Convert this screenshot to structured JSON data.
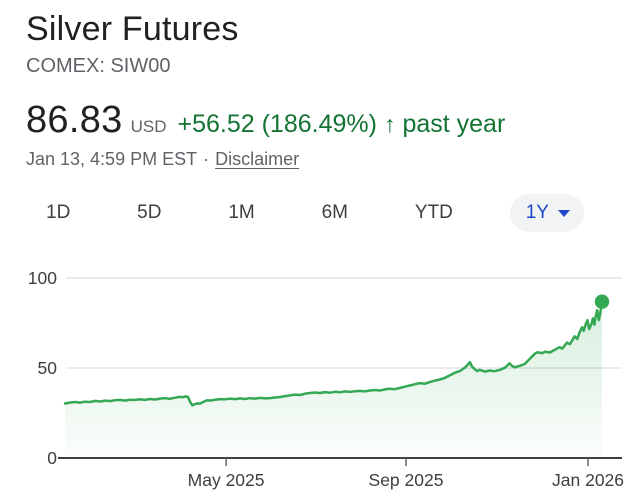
{
  "header": {
    "title": "Silver Futures",
    "exchange": "COMEX: SIW00"
  },
  "quote": {
    "price": "86.83",
    "currency": "USD",
    "change": "+56.52 (186.49%)",
    "arrow": "↑",
    "period_label": "past year",
    "timestamp": "Jan 13, 4:59 PM EST",
    "separator": "·",
    "disclaimer_label": "Disclaimer"
  },
  "range_tabs": {
    "selected": "1Y",
    "items": [
      {
        "label": "1D"
      },
      {
        "label": "5D"
      },
      {
        "label": "1M"
      },
      {
        "label": "6M"
      },
      {
        "label": "YTD"
      },
      {
        "label": "1Y"
      }
    ]
  },
  "colors": {
    "text_primary": "#202124",
    "text_secondary": "#5f6368",
    "tab_text": "#3c4043",
    "accent_blue": "#1f46c8",
    "change_green": "#137333",
    "line_green": "#34a853",
    "chip_bg": "#f1f3f4",
    "gridline": "#e9ebec",
    "baseline": "#3c4043",
    "axis_text": "#3c4043"
  },
  "chart_data": {
    "type": "area",
    "title": "Silver Futures, past year",
    "x_range": [
      "Jan 13, 2025",
      "Jan 13, 2026"
    ],
    "ylim": [
      0,
      100
    ],
    "y_ticks": [
      0,
      50,
      100
    ],
    "x_ticks": [
      {
        "label": "May 2025",
        "f": 0.3
      },
      {
        "label": "Sep 2025",
        "f": 0.635
      },
      {
        "label": "Jan 2026",
        "f": 0.974
      }
    ],
    "legend": "none",
    "grid": "horizontal",
    "last_point_value": 86.83,
    "points": [
      [
        0.0,
        30.3
      ],
      [
        0.009,
        30.8
      ],
      [
        0.019,
        31.1
      ],
      [
        0.028,
        30.8
      ],
      [
        0.037,
        31.3
      ],
      [
        0.047,
        31.1
      ],
      [
        0.056,
        31.7
      ],
      [
        0.065,
        31.4
      ],
      [
        0.075,
        31.9
      ],
      [
        0.084,
        31.6
      ],
      [
        0.093,
        32.1
      ],
      [
        0.103,
        32.3
      ],
      [
        0.112,
        31.9
      ],
      [
        0.121,
        32.4
      ],
      [
        0.13,
        32.2
      ],
      [
        0.14,
        32.6
      ],
      [
        0.149,
        32.3
      ],
      [
        0.158,
        32.8
      ],
      [
        0.168,
        32.5
      ],
      [
        0.177,
        33.0
      ],
      [
        0.186,
        33.3
      ],
      [
        0.195,
        32.9
      ],
      [
        0.205,
        33.5
      ],
      [
        0.214,
        34.0
      ],
      [
        0.219,
        33.7
      ],
      [
        0.224,
        34.2
      ],
      [
        0.229,
        33.9
      ],
      [
        0.233,
        31.2
      ],
      [
        0.237,
        29.3
      ],
      [
        0.242,
        29.9
      ],
      [
        0.247,
        30.4
      ],
      [
        0.251,
        30.1
      ],
      [
        0.256,
        31.0
      ],
      [
        0.261,
        31.6
      ],
      [
        0.266,
        32.1
      ],
      [
        0.27,
        31.9
      ],
      [
        0.28,
        32.4
      ],
      [
        0.289,
        32.7
      ],
      [
        0.298,
        32.6
      ],
      [
        0.307,
        33.0
      ],
      [
        0.317,
        32.7
      ],
      [
        0.326,
        33.1
      ],
      [
        0.335,
        32.8
      ],
      [
        0.344,
        33.2
      ],
      [
        0.354,
        33.0
      ],
      [
        0.363,
        33.4
      ],
      [
        0.372,
        33.1
      ],
      [
        0.382,
        33.3
      ],
      [
        0.391,
        33.6
      ],
      [
        0.4,
        33.9
      ],
      [
        0.41,
        34.4
      ],
      [
        0.419,
        34.8
      ],
      [
        0.428,
        35.2
      ],
      [
        0.438,
        35.0
      ],
      [
        0.447,
        35.7
      ],
      [
        0.456,
        36.1
      ],
      [
        0.466,
        36.4
      ],
      [
        0.475,
        36.1
      ],
      [
        0.484,
        36.6
      ],
      [
        0.493,
        36.3
      ],
      [
        0.503,
        36.8
      ],
      [
        0.512,
        36.5
      ],
      [
        0.521,
        37.0
      ],
      [
        0.531,
        36.7
      ],
      [
        0.54,
        37.1
      ],
      [
        0.549,
        37.3
      ],
      [
        0.558,
        37.0
      ],
      [
        0.568,
        37.5
      ],
      [
        0.577,
        37.8
      ],
      [
        0.586,
        37.5
      ],
      [
        0.596,
        38.1
      ],
      [
        0.605,
        38.5
      ],
      [
        0.614,
        38.2
      ],
      [
        0.623,
        38.9
      ],
      [
        0.633,
        39.6
      ],
      [
        0.642,
        40.3
      ],
      [
        0.652,
        41.0
      ],
      [
        0.661,
        41.6
      ],
      [
        0.67,
        41.3
      ],
      [
        0.68,
        42.3
      ],
      [
        0.689,
        43.0
      ],
      [
        0.698,
        43.6
      ],
      [
        0.707,
        44.5
      ],
      [
        0.717,
        46.0
      ],
      [
        0.726,
        47.4
      ],
      [
        0.736,
        48.4
      ],
      [
        0.745,
        50.3
      ],
      [
        0.754,
        53.2
      ],
      [
        0.758,
        50.8
      ],
      [
        0.763,
        49.4
      ],
      [
        0.768,
        48.3
      ],
      [
        0.772,
        49.0
      ],
      [
        0.782,
        48.0
      ],
      [
        0.791,
        48.6
      ],
      [
        0.8,
        48.2
      ],
      [
        0.81,
        49.0
      ],
      [
        0.819,
        50.1
      ],
      [
        0.828,
        52.6
      ],
      [
        0.833,
        51.0
      ],
      [
        0.838,
        50.4
      ],
      [
        0.847,
        51.2
      ],
      [
        0.856,
        52.2
      ],
      [
        0.866,
        55.2
      ],
      [
        0.875,
        58.0
      ],
      [
        0.88,
        58.7
      ],
      [
        0.889,
        58.3
      ],
      [
        0.894,
        59.1
      ],
      [
        0.903,
        58.6
      ],
      [
        0.912,
        60.1
      ],
      [
        0.921,
        61.6
      ],
      [
        0.926,
        60.8
      ],
      [
        0.931,
        62.6
      ],
      [
        0.935,
        64.1
      ],
      [
        0.94,
        63.2
      ],
      [
        0.945,
        65.6
      ],
      [
        0.949,
        67.6
      ],
      [
        0.954,
        66.1
      ],
      [
        0.958,
        69.6
      ],
      [
        0.963,
        72.6
      ],
      [
        0.966,
        70.6
      ],
      [
        0.97,
        74.6
      ],
      [
        0.973,
        76.6
      ],
      [
        0.976,
        71.6
      ],
      [
        0.98,
        74.1
      ],
      [
        0.983,
        77.6
      ],
      [
        0.986,
        74.1
      ],
      [
        0.988,
        78.6
      ],
      [
        0.991,
        82.1
      ],
      [
        0.994,
        76.6
      ],
      [
        0.997,
        81.1
      ],
      [
        1.0,
        86.83
      ]
    ]
  }
}
